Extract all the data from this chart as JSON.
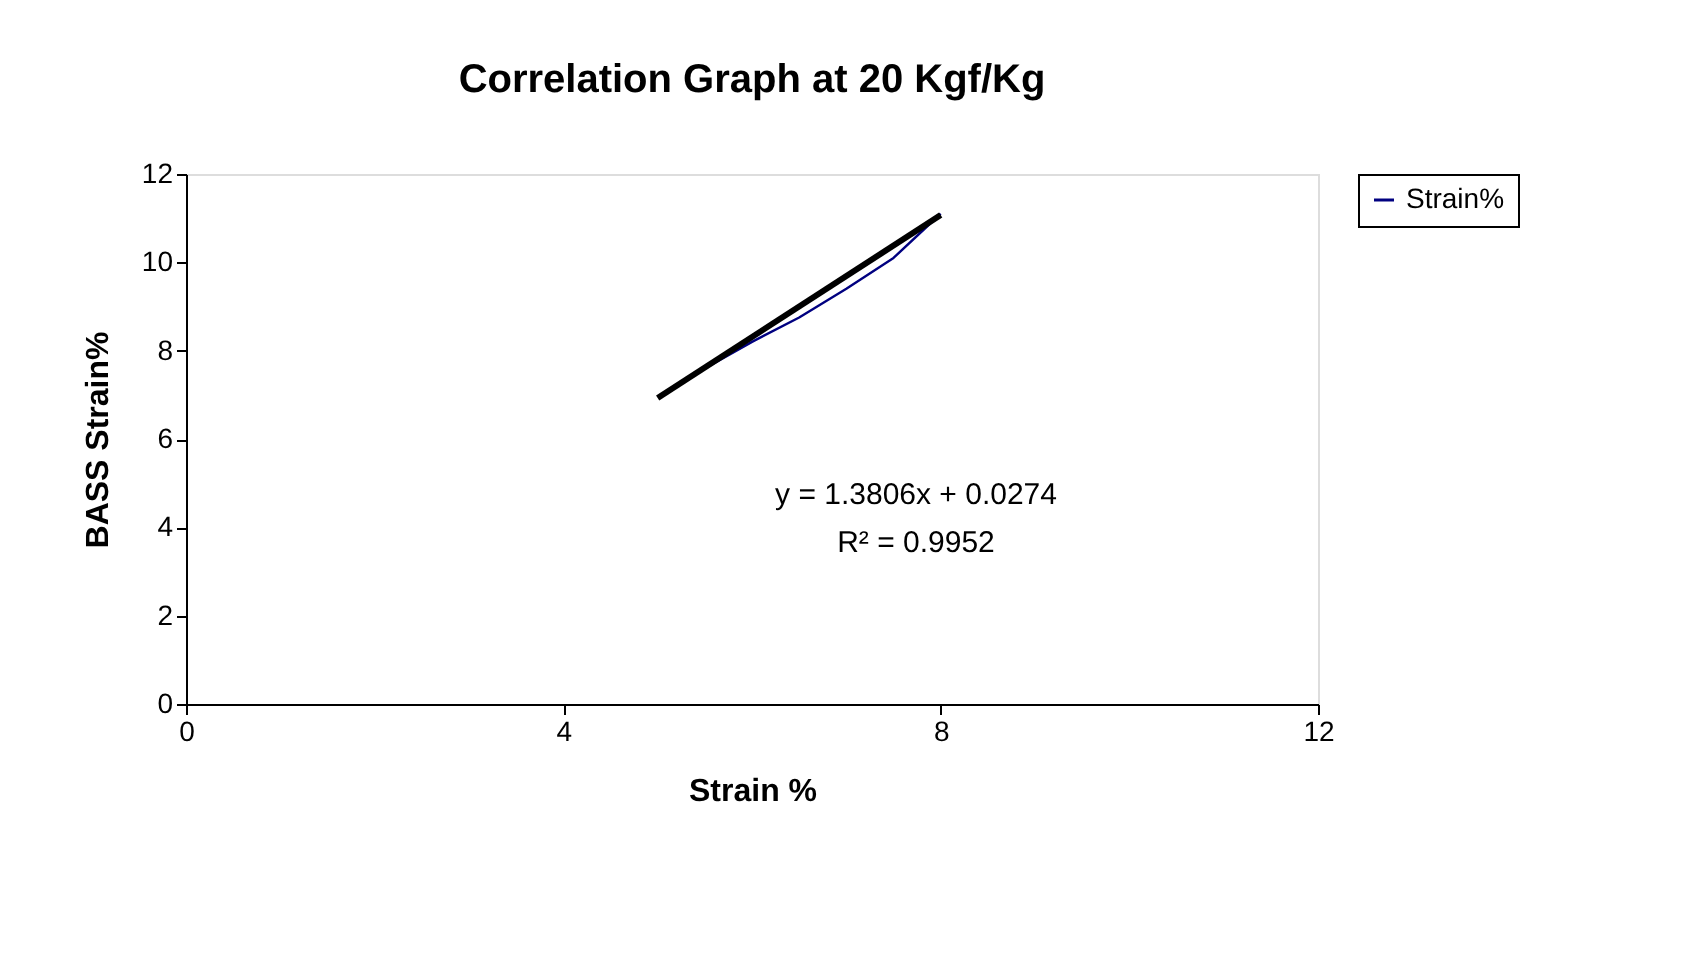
{
  "chart_data": {
    "type": "line",
    "title": "Correlation Graph at 20 Kgf/Kg",
    "xlabel": "Strain %",
    "ylabel": "BASS Strain%",
    "xlim": [
      0,
      12
    ],
    "xticks": [
      0,
      4,
      8,
      12
    ],
    "ylim": [
      0,
      12
    ],
    "yticks": [
      0,
      2,
      4,
      6,
      8,
      10,
      12
    ],
    "grid": false,
    "legend": "right",
    "marker": "none",
    "line_style": "solid",
    "series": [
      {
        "name": "Strain%",
        "color": "#000080",
        "x": [
          5.0,
          5.5,
          6.0,
          6.5,
          7.0,
          7.5,
          8.0
        ],
        "values": [
          6.95,
          7.6,
          8.2,
          8.75,
          9.4,
          10.1,
          11.1
        ]
      },
      {
        "type": "line",
        "color": "#000000",
        "x": [
          5.0,
          8.0
        ],
        "values": [
          6.93,
          11.07
        ]
      }
    ],
    "annotations": [
      "y = 1.3806x + 0.0274",
      "R² = 0.9952"
    ]
  }
}
